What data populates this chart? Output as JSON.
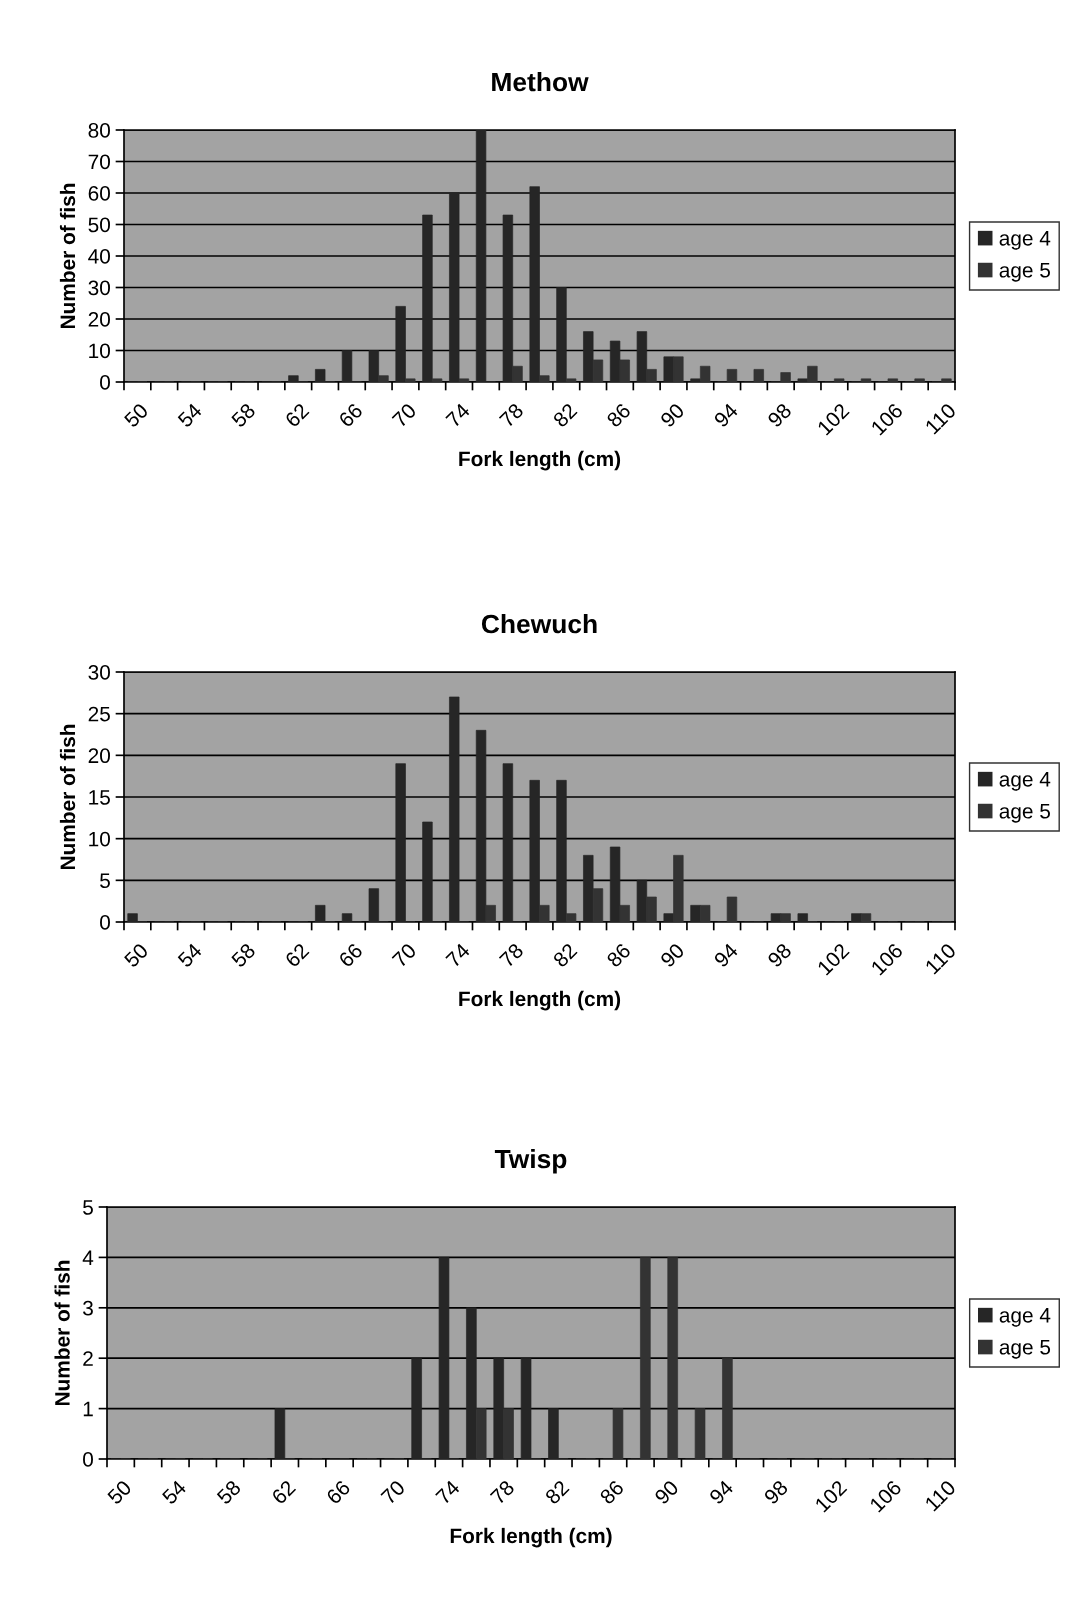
{
  "chart_data": [
    {
      "type": "bar",
      "title": "Methow",
      "xlabel": "Fork length (cm)",
      "ylabel": "Number of fish",
      "categories": [
        "50",
        null,
        "54",
        null,
        "58",
        null,
        "62",
        null,
        "66",
        null,
        "70",
        null,
        "74",
        null,
        "78",
        null,
        "82",
        null,
        "86",
        null,
        "90",
        null,
        "94",
        null,
        "98",
        null,
        "102",
        null,
        "106",
        null,
        "110"
      ],
      "series": [
        {
          "name": "age 4",
          "color": "#262626",
          "values": [
            0,
            0,
            0,
            0,
            0,
            0,
            2,
            4,
            10,
            10,
            24,
            53,
            60,
            80,
            53,
            62,
            30,
            16,
            13,
            16,
            8,
            1,
            0,
            0,
            0,
            1,
            0,
            0,
            0,
            0,
            0
          ]
        },
        {
          "name": "age 5",
          "color": "#333333",
          "values": [
            0,
            0,
            0,
            0,
            0,
            0,
            0,
            0,
            0,
            2,
            1,
            1,
            1,
            0,
            5,
            2,
            1,
            7,
            7,
            4,
            8,
            5,
            4,
            4,
            3,
            5,
            1,
            1,
            1,
            1,
            1
          ]
        }
      ],
      "ylim": [
        0,
        80
      ],
      "yticks": [
        0,
        10,
        20,
        30,
        40,
        50,
        60,
        70,
        80
      ],
      "grid": "y",
      "legend": "right"
    },
    {
      "type": "bar",
      "title": "Chewuch",
      "xlabel": "Fork length (cm)",
      "ylabel": "Number of fish",
      "categories": [
        "50",
        null,
        "54",
        null,
        "58",
        null,
        "62",
        null,
        "66",
        null,
        "70",
        null,
        "74",
        null,
        "78",
        null,
        "82",
        null,
        "86",
        null,
        "90",
        null,
        "94",
        null,
        "98",
        null,
        "102",
        null,
        "106",
        null,
        "110"
      ],
      "series": [
        {
          "name": "age 4",
          "color": "#262626",
          "values": [
            1,
            0,
            0,
            0,
            0,
            0,
            0,
            2,
            1,
            4,
            19,
            12,
            27,
            23,
            19,
            17,
            17,
            8,
            9,
            5,
            1,
            2,
            0,
            0,
            1,
            1,
            0,
            1,
            0,
            0,
            0
          ]
        },
        {
          "name": "age 5",
          "color": "#333333",
          "values": [
            0,
            0,
            0,
            0,
            0,
            0,
            0,
            0,
            0,
            0,
            0,
            0,
            0,
            2,
            0,
            2,
            1,
            4,
            2,
            3,
            8,
            2,
            3,
            0,
            1,
            0,
            0,
            1,
            0,
            0,
            0
          ]
        }
      ],
      "ylim": [
        0,
        30
      ],
      "yticks": [
        0,
        5,
        10,
        15,
        20,
        25,
        30
      ],
      "grid": "y",
      "legend": "right"
    },
    {
      "type": "bar",
      "title": "Twisp",
      "xlabel": "Fork length (cm)",
      "ylabel": "Number of fish",
      "categories": [
        "50",
        null,
        "54",
        null,
        "58",
        null,
        "62",
        null,
        "66",
        null,
        "70",
        null,
        "74",
        null,
        "78",
        null,
        "82",
        null,
        "86",
        null,
        "90",
        null,
        "94",
        null,
        "98",
        null,
        "102",
        null,
        "106",
        null,
        "110"
      ],
      "series": [
        {
          "name": "age 4",
          "color": "#262626",
          "values": [
            0,
            0,
            0,
            0,
            0,
            0,
            1,
            0,
            0,
            0,
            0,
            2,
            4,
            3,
            2,
            2,
            1,
            0,
            0,
            0,
            0,
            0,
            0,
            0,
            0,
            0,
            0,
            0,
            0,
            0,
            0
          ]
        },
        {
          "name": "age 5",
          "color": "#333333",
          "values": [
            0,
            0,
            0,
            0,
            0,
            0,
            0,
            0,
            0,
            0,
            0,
            0,
            0,
            1,
            1,
            0,
            0,
            0,
            1,
            4,
            4,
            1,
            2,
            0,
            0,
            0,
            0,
            0,
            0,
            0,
            0
          ]
        }
      ],
      "ylim": [
        0,
        5
      ],
      "yticks": [
        0,
        1,
        2,
        3,
        4,
        5
      ],
      "grid": "y",
      "legend": "right"
    }
  ]
}
